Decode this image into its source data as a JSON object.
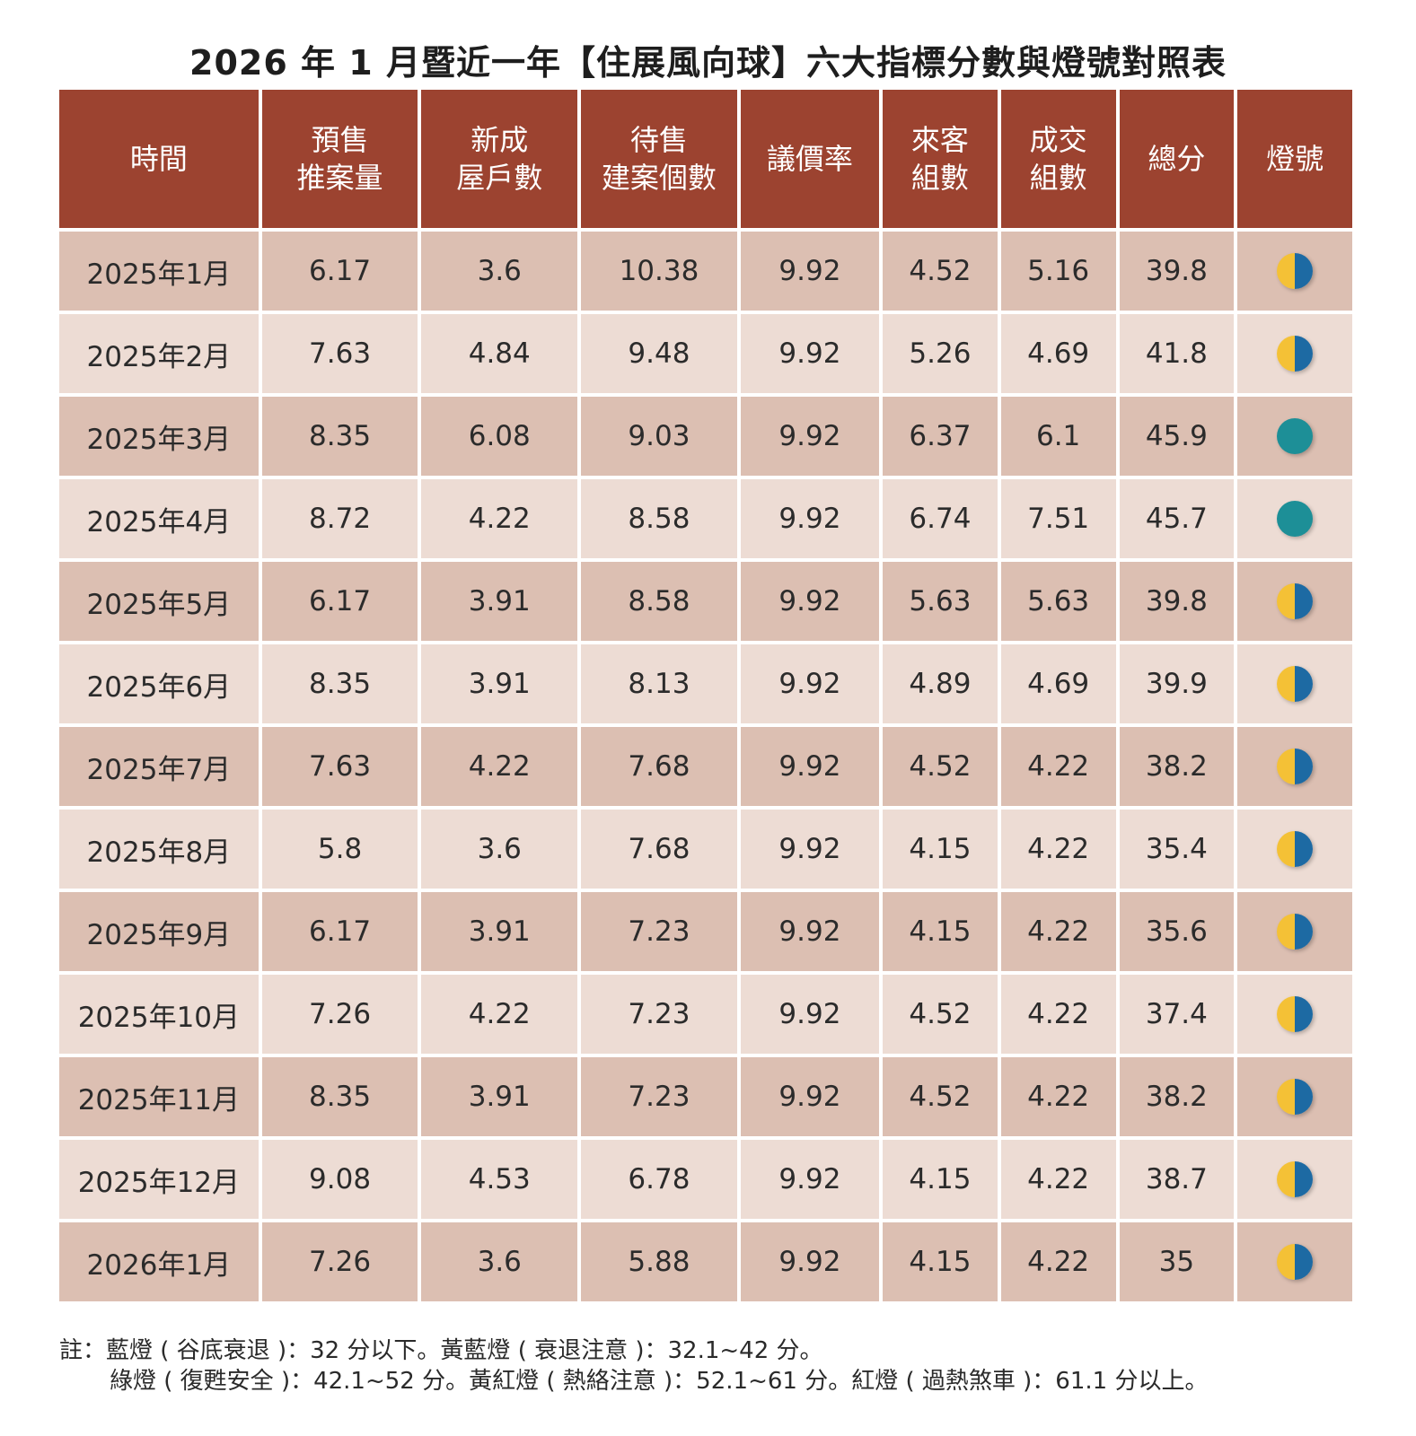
{
  "title": "2026 年 1 月暨近一年【住展風向球】六大指標分數與燈號對照表",
  "colors": {
    "header_bg": "#9c4330",
    "row_dark": "#dcbfb2",
    "row_light": "#eddcd4",
    "signal_yellow": "#f4c136",
    "signal_blue": "#1d6aa3",
    "signal_green": "#1d8f97"
  },
  "chart_data": {
    "type": "table",
    "columns": [
      [
        "時間"
      ],
      [
        "預售",
        "推案量"
      ],
      [
        "新成",
        "屋戶數"
      ],
      [
        "待售",
        "建案個數"
      ],
      [
        "議價率"
      ],
      [
        "來客",
        "組數"
      ],
      [
        "成交",
        "組數"
      ],
      [
        "總分"
      ],
      [
        "燈號"
      ]
    ],
    "rows": [
      {
        "time": "2025年1月",
        "values": [
          "6.17",
          "3.6",
          "10.38",
          "9.92",
          "4.52",
          "5.16",
          "39.8"
        ],
        "signal": "yellow-blue"
      },
      {
        "time": "2025年2月",
        "values": [
          "7.63",
          "4.84",
          "9.48",
          "9.92",
          "5.26",
          "4.69",
          "41.8"
        ],
        "signal": "yellow-blue"
      },
      {
        "time": "2025年3月",
        "values": [
          "8.35",
          "6.08",
          "9.03",
          "9.92",
          "6.37",
          "6.1",
          "45.9"
        ],
        "signal": "green"
      },
      {
        "time": "2025年4月",
        "values": [
          "8.72",
          "4.22",
          "8.58",
          "9.92",
          "6.74",
          "7.51",
          "45.7"
        ],
        "signal": "green"
      },
      {
        "time": "2025年5月",
        "values": [
          "6.17",
          "3.91",
          "8.58",
          "9.92",
          "5.63",
          "5.63",
          "39.8"
        ],
        "signal": "yellow-blue"
      },
      {
        "time": "2025年6月",
        "values": [
          "8.35",
          "3.91",
          "8.13",
          "9.92",
          "4.89",
          "4.69",
          "39.9"
        ],
        "signal": "yellow-blue"
      },
      {
        "time": "2025年7月",
        "values": [
          "7.63",
          "4.22",
          "7.68",
          "9.92",
          "4.52",
          "4.22",
          "38.2"
        ],
        "signal": "yellow-blue"
      },
      {
        "time": "2025年8月",
        "values": [
          "5.8",
          "3.6",
          "7.68",
          "9.92",
          "4.15",
          "4.22",
          "35.4"
        ],
        "signal": "yellow-blue"
      },
      {
        "time": "2025年9月",
        "values": [
          "6.17",
          "3.91",
          "7.23",
          "9.92",
          "4.15",
          "4.22",
          "35.6"
        ],
        "signal": "yellow-blue"
      },
      {
        "time": "2025年10月",
        "values": [
          "7.26",
          "4.22",
          "7.23",
          "9.92",
          "4.52",
          "4.22",
          "37.4"
        ],
        "signal": "yellow-blue"
      },
      {
        "time": "2025年11月",
        "values": [
          "8.35",
          "3.91",
          "7.23",
          "9.92",
          "4.52",
          "4.22",
          "38.2"
        ],
        "signal": "yellow-blue"
      },
      {
        "time": "2025年12月",
        "values": [
          "9.08",
          "4.53",
          "6.78",
          "9.92",
          "4.15",
          "4.22",
          "38.7"
        ],
        "signal": "yellow-blue"
      },
      {
        "time": "2026年1月",
        "values": [
          "7.26",
          "3.6",
          "5.88",
          "9.92",
          "4.15",
          "4.22",
          "35"
        ],
        "signal": "yellow-blue"
      }
    ]
  },
  "notes": {
    "line1": "註：藍燈 ( 谷底衰退 )：32 分以下。黃藍燈 ( 衰退注意 )：32.1~42 分。",
    "line2": "綠燈 ( 復甦安全 )：42.1~52 分。黃紅燈 ( 熱絡注意 )：52.1~61 分。紅燈 ( 過熱煞車 )：61.1 分以上。"
  }
}
